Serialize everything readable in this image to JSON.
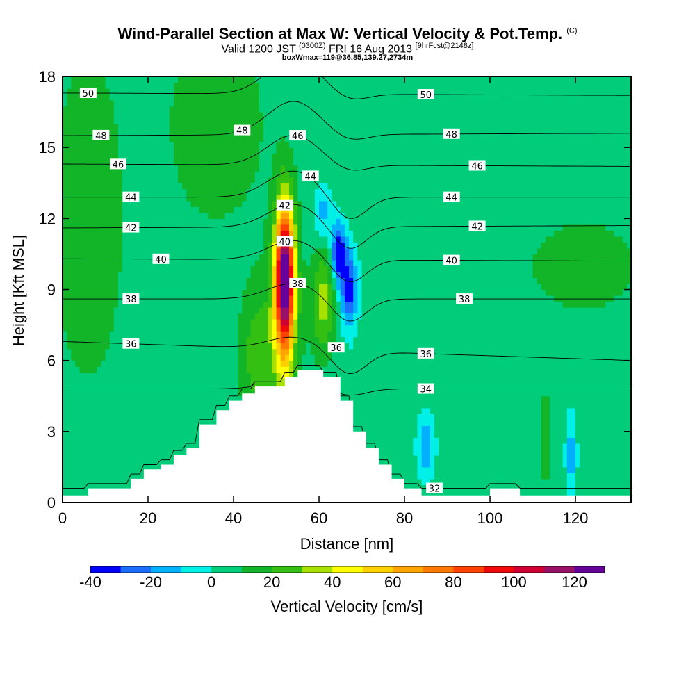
{
  "chart_data": {
    "type": "heatmap",
    "title": "Wind-Parallel Section at Max W: Vertical Velocity & Pot.Temp.",
    "title_mark": "(C)",
    "subtitle_main_1": "Valid 1200 JST",
    "subtitle_small_1": "(0300Z)",
    "subtitle_main_2": "FRI 16 Aug 2013",
    "subtitle_small_2": "[9hrFcst@2148z]",
    "subtitle2": "boxWmax=119@36.85,139.27,2734m",
    "xlabel": "Distance [nm]",
    "ylabel": "Height [Kft MSL]",
    "xlim": [
      0,
      133
    ],
    "ylim": [
      0,
      18
    ],
    "x_ticks": [
      "0",
      "20",
      "40",
      "60",
      "80",
      "100",
      "120"
    ],
    "y_ticks": [
      "0",
      "3",
      "6",
      "9",
      "12",
      "15",
      "18"
    ],
    "colorbar": {
      "label": "Vertical Velocity [cm/s]",
      "ticks": [
        "-40",
        "-20",
        "0",
        "20",
        "40",
        "60",
        "80",
        "100",
        "120"
      ],
      "min": -40,
      "max": 130,
      "step": 10,
      "colors": [
        "#0000ff",
        "#1a6fff",
        "#00b0ff",
        "#00f0e8",
        "#00cc7a",
        "#12b528",
        "#33c012",
        "#a8e000",
        "#ffff00",
        "#ffd000",
        "#ffa400",
        "#ff7a00",
        "#ff4400",
        "#ee0a0a",
        "#cc0033",
        "#991166",
        "#660099"
      ]
    },
    "background_w": 5,
    "theta_contours": [
      {
        "value": 32,
        "label": "32",
        "y_left": 0.6,
        "y_right": 0.6
      },
      {
        "value": 34,
        "label": "34",
        "y_left": 4.8,
        "y_right": 4.8
      },
      {
        "value": 36,
        "label": "36",
        "y_left": 6.8,
        "y_right": 6.0
      },
      {
        "value": 38,
        "label": "38",
        "y_left": 8.6,
        "y_right": 8.6
      },
      {
        "value": 40,
        "label": "40",
        "y_left": 10.3,
        "y_right": 10.2
      },
      {
        "value": 42,
        "label": "42",
        "y_left": 11.6,
        "y_right": 11.7
      },
      {
        "value": 44,
        "label": "44",
        "y_left": 12.9,
        "y_right": 12.9
      },
      {
        "value": 46,
        "label": "46",
        "y_left": 14.3,
        "y_right": 14.2
      },
      {
        "value": 48,
        "label": "48",
        "y_left": 15.5,
        "y_right": 15.6
      },
      {
        "value": 50,
        "label": "50",
        "y_left": 17.3,
        "y_right": 17.2
      }
    ],
    "theta_label_positions": [
      {
        "label": "50",
        "x": [
          6,
          52,
          85
        ]
      },
      {
        "label": "48",
        "x": [
          9,
          42,
          91
        ]
      },
      {
        "label": "46",
        "x": [
          13,
          55,
          97
        ]
      },
      {
        "label": "44",
        "x": [
          16,
          58,
          91
        ]
      },
      {
        "label": "42",
        "x": [
          16,
          52,
          97
        ]
      },
      {
        "label": "40",
        "x": [
          23,
          52,
          91
        ]
      },
      {
        "label": "38",
        "x": [
          16,
          55,
          94
        ]
      },
      {
        "label": "36",
        "x": [
          16,
          64,
          85
        ]
      },
      {
        "label": "34",
        "x": [
          85
        ]
      },
      {
        "label": "32",
        "x": [
          87
        ]
      }
    ],
    "w_features": [
      {
        "name": "updraft",
        "x": 52,
        "y": 9.5,
        "sx": 1.6,
        "sy": 2.2,
        "amp": 125
      },
      {
        "name": "updraft-base",
        "x": 51,
        "y": 6.5,
        "sx": 3.0,
        "sy": 3.0,
        "amp": 18
      },
      {
        "name": "downdraft-upper",
        "x": 64.5,
        "y": 10.5,
        "sx": 1.2,
        "sy": 0.9,
        "amp": -45
      },
      {
        "name": "downdraft-mid",
        "x": 67,
        "y": 9,
        "sx": 1.4,
        "sy": 1.2,
        "amp": -40
      },
      {
        "name": "downdraft-top",
        "x": 61,
        "y": 12.3,
        "sx": 1.5,
        "sy": 0.8,
        "amp": -20
      },
      {
        "name": "secondary-updraft",
        "x": 61,
        "y": 8.5,
        "sx": 2.0,
        "sy": 1.5,
        "amp": 30
      },
      {
        "name": "left-band",
        "x": 45,
        "y": 6.2,
        "sx": 2.6,
        "sy": 2.0,
        "amp": 18
      },
      {
        "name": "low-downdraft",
        "x": 85,
        "y": 2.4,
        "sx": 1.5,
        "sy": 1.0,
        "amp": -22
      },
      {
        "name": "low-downdraft-2",
        "x": 119,
        "y": 2.0,
        "sx": 0.9,
        "sy": 1.2,
        "amp": -22
      },
      {
        "name": "low-updraft",
        "x": 113,
        "y": 2.8,
        "sx": 0.8,
        "sy": 1.2,
        "amp": 18
      },
      {
        "name": "left-upper-band",
        "x": 6,
        "y": 12,
        "sx": 6.0,
        "sy": 5.0,
        "amp": 12
      },
      {
        "name": "right-band",
        "x": 122,
        "y": 10,
        "sx": 10.0,
        "sy": 1.5,
        "amp": 10
      },
      {
        "name": "top-left-band",
        "x": 36,
        "y": 16,
        "sx": 8.0,
        "sy": 3.0,
        "amp": 12
      }
    ],
    "terrain": [
      [
        0,
        0.3
      ],
      [
        6,
        0.3
      ],
      [
        6,
        0.6
      ],
      [
        16,
        0.6
      ],
      [
        16,
        1.0
      ],
      [
        19,
        1.0
      ],
      [
        19,
        1.4
      ],
      [
        23,
        1.4
      ],
      [
        23,
        1.6
      ],
      [
        26,
        1.6
      ],
      [
        26,
        2.0
      ],
      [
        29,
        2.0
      ],
      [
        29,
        2.3
      ],
      [
        32,
        2.3
      ],
      [
        32,
        3.3
      ],
      [
        36,
        3.3
      ],
      [
        36,
        3.9
      ],
      [
        39,
        3.9
      ],
      [
        39,
        4.3
      ],
      [
        42,
        4.3
      ],
      [
        42,
        4.6
      ],
      [
        45,
        4.6
      ],
      [
        45,
        4.9
      ],
      [
        52,
        4.9
      ],
      [
        52,
        5.3
      ],
      [
        55,
        5.3
      ],
      [
        55,
        5.6
      ],
      [
        61,
        5.6
      ],
      [
        61,
        5.3
      ],
      [
        65,
        5.3
      ],
      [
        65,
        4.3
      ],
      [
        68,
        4.3
      ],
      [
        68,
        3.0
      ],
      [
        71,
        3.0
      ],
      [
        71,
        2.3
      ],
      [
        74,
        2.3
      ],
      [
        74,
        1.6
      ],
      [
        77,
        1.6
      ],
      [
        77,
        1.0
      ],
      [
        80,
        1.0
      ],
      [
        80,
        0.6
      ],
      [
        84,
        0.6
      ],
      [
        84,
        0.3
      ],
      [
        100,
        0.3
      ],
      [
        100,
        0.6
      ],
      [
        107,
        0.6
      ],
      [
        107,
        0.3
      ],
      [
        133,
        0.3
      ]
    ]
  }
}
